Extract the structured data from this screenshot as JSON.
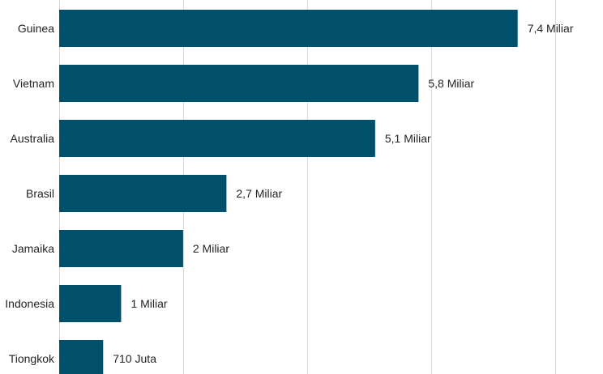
{
  "chart_data": {
    "type": "bar",
    "orientation": "horizontal",
    "categories": [
      "Guinea",
      "Vietnam",
      "Australia",
      "Brasil",
      "Jamaika",
      "Indonesia",
      "Tiongkok"
    ],
    "values": [
      7400000000,
      5800000000,
      5100000000,
      2700000000,
      2000000000,
      1000000000,
      710000000
    ],
    "data_labels": [
      "7,4 Miliar",
      "5,8 Miliar",
      "5,1 Miliar",
      "2,7 Miliar",
      "2 Miliar",
      "1 Miliar",
      "710 Juta"
    ],
    "xlim": [
      0,
      9000000000
    ],
    "grid": true,
    "bar_color": "#004F6B"
  }
}
